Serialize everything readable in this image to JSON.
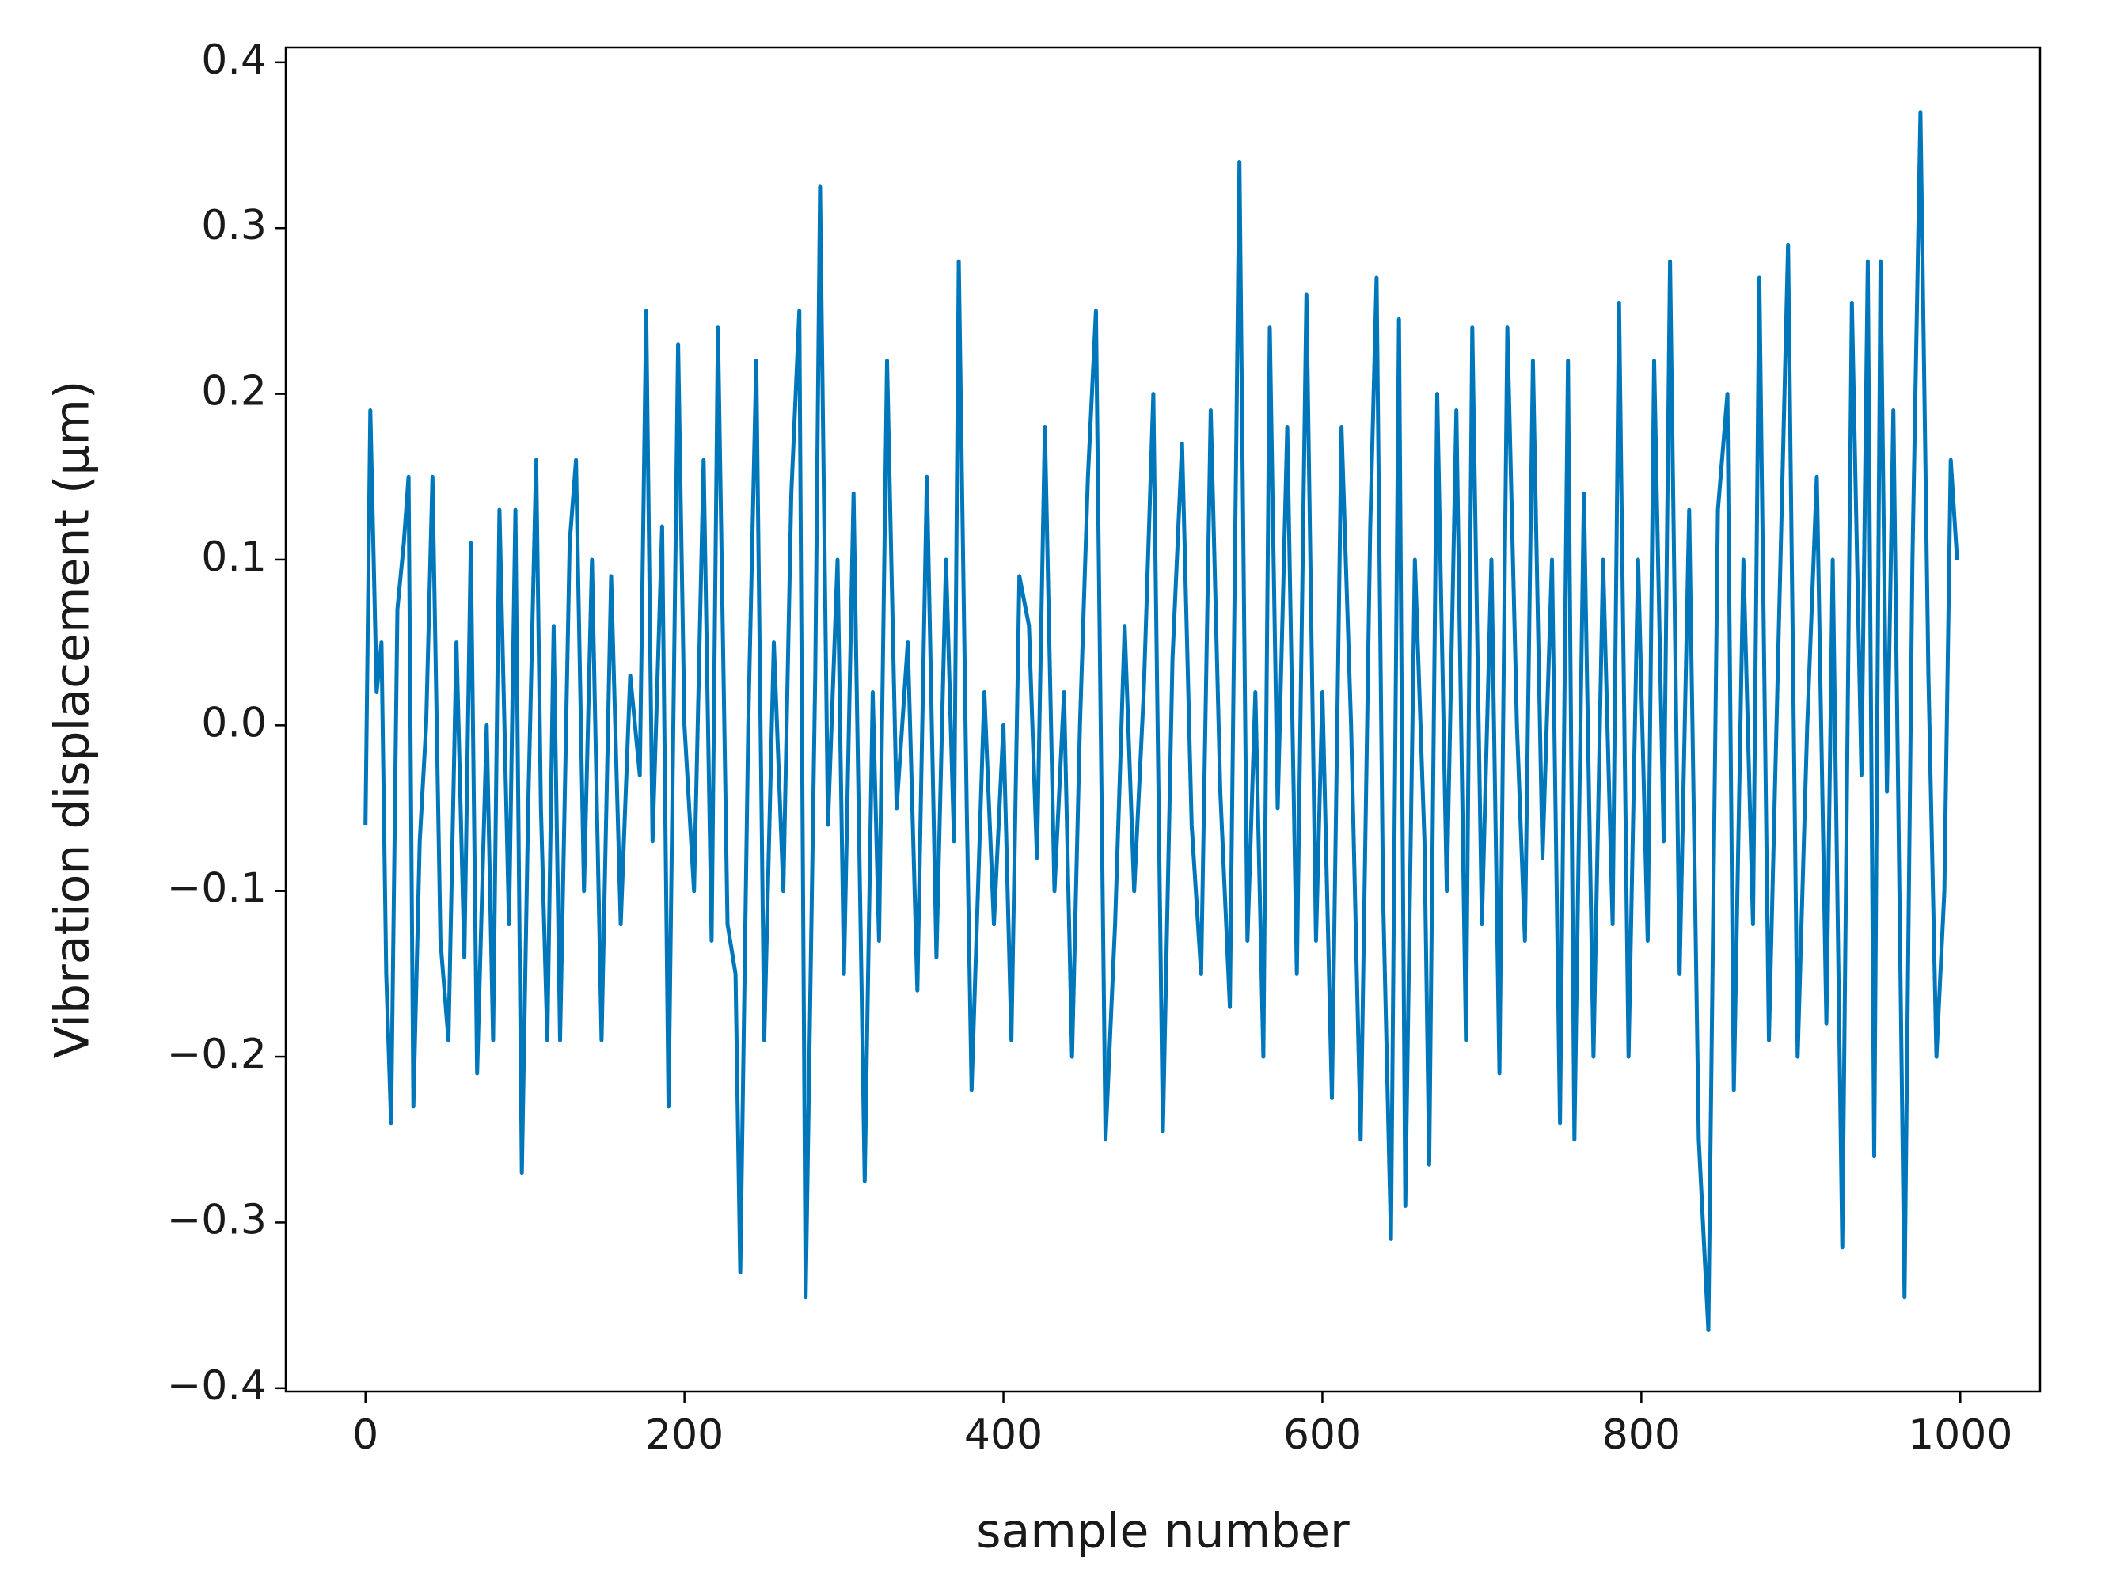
{
  "chart_data": {
    "type": "line",
    "xlabel": "sample number",
    "ylabel": "Vibration displacement (μm)",
    "x": [
      0,
      3,
      7,
      10,
      13,
      16,
      20,
      24,
      27,
      30,
      34,
      38,
      42,
      47,
      52,
      57,
      62,
      66,
      70,
      76,
      80,
      84,
      90,
      94,
      98,
      102,
      107,
      110,
      114,
      118,
      122,
      128,
      132,
      137,
      142,
      148,
      154,
      160,
      166,
      172,
      176,
      180,
      186,
      190,
      196,
      200,
      206,
      212,
      217,
      221,
      227,
      232,
      235,
      240,
      245,
      250,
      256,
      262,
      267,
      272,
      276,
      282,
      285,
      290,
      296,
      300,
      306,
      313,
      318,
      322,
      327,
      333,
      340,
      346,
      352,
      358,
      364,
      369,
      372,
      377,
      380,
      388,
      394,
      400,
      405,
      410,
      416,
      421,
      426,
      432,
      438,
      443,
      448,
      453,
      458,
      464,
      470,
      476,
      482,
      488,
      494,
      500,
      506,
      512,
      518,
      524,
      530,
      536,
      542,
      548,
      553,
      558,
      563,
      567,
      572,
      578,
      584,
      590,
      596,
      600,
      606,
      612,
      618,
      624,
      630,
      634,
      638,
      643,
      648,
      652,
      658,
      664,
      667,
      672,
      678,
      684,
      690,
      694,
      700,
      706,
      711,
      716,
      722,
      727,
      732,
      738,
      744,
      749,
      754,
      758,
      764,
      770,
      776,
      782,
      786,
      792,
      798,
      804,
      808,
      814,
      818,
      824,
      830,
      836,
      842,
      848,
      854,
      858,
      864,
      870,
      874,
      880,
      886,
      892,
      898,
      904,
      910,
      916,
      920,
      926,
      932,
      938,
      942,
      946,
      950,
      954,
      958,
      965,
      970,
      975,
      980,
      985,
      990,
      994,
      998
    ],
    "series": [
      {
        "color": "#0077bb",
        "values": [
          -0.06,
          0.19,
          0.02,
          0.05,
          -0.15,
          -0.24,
          0.07,
          0.11,
          0.15,
          -0.23,
          -0.07,
          0.0,
          0.15,
          -0.13,
          -0.19,
          0.05,
          -0.14,
          0.11,
          -0.21,
          0.0,
          -0.19,
          0.13,
          -0.12,
          0.13,
          -0.27,
          -0.05,
          0.16,
          -0.05,
          -0.19,
          0.06,
          -0.19,
          0.11,
          0.16,
          -0.1,
          0.1,
          -0.19,
          0.09,
          -0.12,
          0.03,
          -0.03,
          0.25,
          -0.07,
          0.12,
          -0.23,
          0.23,
          0.0,
          -0.1,
          0.16,
          -0.13,
          0.24,
          -0.12,
          -0.15,
          -0.33,
          0.0,
          0.22,
          -0.19,
          0.05,
          -0.1,
          0.14,
          0.25,
          -0.345,
          0.03,
          0.325,
          -0.06,
          0.1,
          -0.15,
          0.14,
          -0.275,
          0.02,
          -0.13,
          0.22,
          -0.05,
          0.05,
          -0.16,
          0.15,
          -0.14,
          0.1,
          -0.07,
          0.28,
          -0.05,
          -0.22,
          0.02,
          -0.12,
          0.0,
          -0.19,
          0.09,
          0.06,
          -0.08,
          0.18,
          -0.1,
          0.02,
          -0.2,
          0.0,
          0.15,
          0.25,
          -0.25,
          -0.12,
          0.06,
          -0.1,
          0.02,
          0.2,
          -0.245,
          0.04,
          0.17,
          -0.06,
          -0.15,
          0.19,
          -0.04,
          -0.17,
          0.34,
          -0.13,
          0.02,
          -0.2,
          0.24,
          -0.05,
          0.18,
          -0.15,
          0.26,
          -0.13,
          0.02,
          -0.225,
          0.18,
          0.0,
          -0.25,
          0.12,
          0.27,
          -0.1,
          -0.31,
          0.245,
          -0.29,
          0.1,
          -0.07,
          -0.265,
          0.2,
          -0.1,
          0.19,
          -0.19,
          0.24,
          -0.12,
          0.1,
          -0.21,
          0.24,
          0.0,
          -0.13,
          0.22,
          -0.08,
          0.1,
          -0.24,
          0.22,
          -0.25,
          0.14,
          -0.2,
          0.1,
          -0.12,
          0.255,
          -0.2,
          0.1,
          -0.13,
          0.22,
          -0.07,
          0.28,
          -0.15,
          0.13,
          -0.25,
          -0.365,
          0.13,
          0.2,
          -0.22,
          0.1,
          -0.12,
          0.27,
          -0.19,
          0.05,
          0.29,
          -0.2,
          0.0,
          0.15,
          -0.18,
          0.1,
          -0.315,
          0.255,
          -0.03,
          0.28,
          -0.26,
          0.28,
          -0.04,
          0.19,
          -0.345,
          0.1,
          0.37,
          0.03,
          -0.2,
          -0.1,
          0.16,
          0.1
        ]
      }
    ],
    "xlim": [
      -50,
      1050
    ],
    "xticks": [
      0,
      200,
      400,
      600,
      800,
      1000
    ],
    "ylim": [
      -0.402,
      0.409
    ],
    "yticks": [
      {
        "value": -0.4,
        "label": "−0.4"
      },
      {
        "value": -0.3,
        "label": "−0.3"
      },
      {
        "value": -0.2,
        "label": "−0.2"
      },
      {
        "value": -0.1,
        "label": "−0.1"
      },
      {
        "value": 0,
        "label": "0.0"
      },
      0.1,
      0.2,
      0.3,
      0.4
    ]
  }
}
